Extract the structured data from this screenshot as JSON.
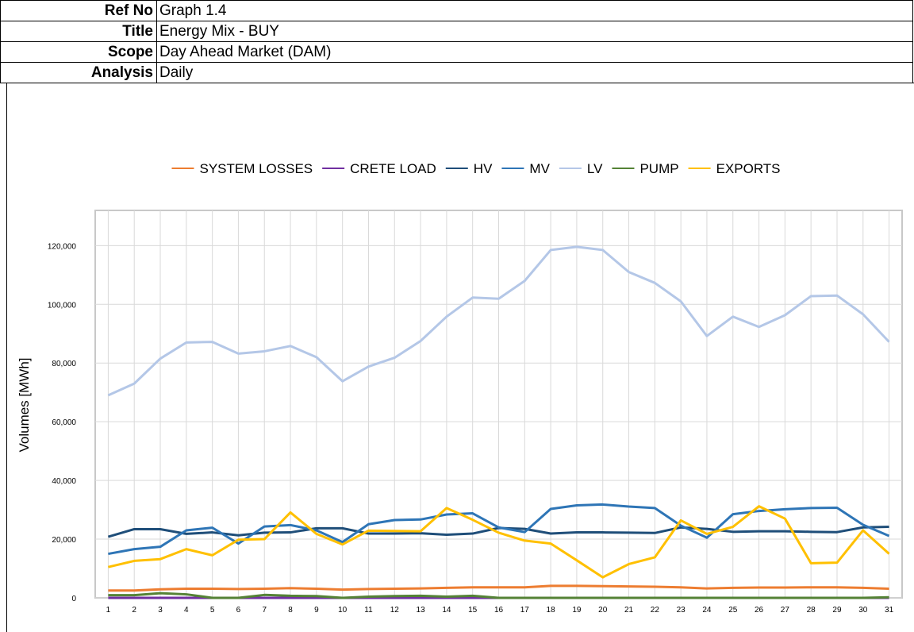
{
  "header": {
    "rows": [
      [
        "Ref No",
        "Graph 1.4"
      ],
      [
        "Title",
        "Energy Mix - BUY"
      ],
      [
        "Scope",
        "Day Ahead Market (DAM)"
      ],
      [
        "Analysis",
        "Daily"
      ]
    ]
  },
  "chart_data": {
    "type": "line",
    "y_label": "Volumes [MWh]",
    "categories": [
      "1",
      "2",
      "3",
      "4",
      "5",
      "6",
      "7",
      "8",
      "9",
      "10",
      "11",
      "12",
      "13",
      "14",
      "15",
      "16",
      "17",
      "18",
      "19",
      "20",
      "21",
      "22",
      "23",
      "24",
      "25",
      "26",
      "27",
      "28",
      "29",
      "30",
      "31"
    ],
    "ylim": [
      0,
      132000
    ],
    "yticks": [
      0,
      {
        "value": 20000,
        "label": "20,000"
      },
      {
        "value": 40000,
        "label": "40,000"
      },
      {
        "value": 60000,
        "label": "60,000"
      },
      {
        "value": 80000,
        "label": "80,000"
      },
      {
        "value": 100000,
        "label": "100,000"
      },
      {
        "value": 120000,
        "label": "120,000"
      }
    ],
    "grid": true,
    "legend": "top",
    "series": [
      {
        "name": "SYSTEM LOSSES",
        "color": "#ed7d31",
        "values": [
          2500,
          2500,
          2900,
          3100,
          3100,
          3000,
          3100,
          3300,
          3100,
          2800,
          3000,
          3100,
          3200,
          3400,
          3600,
          3600,
          3600,
          4100,
          4100,
          4000,
          3900,
          3800,
          3600,
          3200,
          3400,
          3500,
          3500,
          3600,
          3600,
          3400,
          3100
        ]
      },
      {
        "name": "CRETE LOAD",
        "color": "#7030a0",
        "values": [
          0,
          0,
          0,
          0,
          0,
          0,
          0,
          0,
          0,
          0,
          0,
          0,
          0,
          0,
          0,
          0,
          0,
          0,
          0,
          0,
          0,
          0,
          0,
          0,
          0,
          0,
          0,
          0,
          0,
          0,
          0
        ]
      },
      {
        "name": "HV",
        "color": "#1f4e79",
        "values": [
          20800,
          23400,
          23400,
          21800,
          22300,
          21300,
          22200,
          22300,
          23700,
          23700,
          21900,
          21900,
          22000,
          21500,
          21900,
          23800,
          23500,
          21900,
          22300,
          22300,
          22200,
          22100,
          24000,
          23500,
          22500,
          22700,
          22700,
          22500,
          22400,
          24000,
          24200
        ]
      },
      {
        "name": "MV",
        "color": "#2e75b6",
        "values": [
          15000,
          16600,
          17400,
          23000,
          23900,
          18500,
          24300,
          24800,
          23000,
          19000,
          25100,
          26500,
          26700,
          28400,
          28800,
          24000,
          22400,
          30300,
          31500,
          31800,
          31100,
          30600,
          24600,
          20500,
          28500,
          29600,
          30200,
          30600,
          30700,
          24900,
          21100
        ]
      },
      {
        "name": "LV",
        "color": "#b4c7e7",
        "values": [
          69000,
          73000,
          81500,
          87000,
          87200,
          83200,
          84000,
          85800,
          82000,
          73800,
          78800,
          81800,
          87500,
          95800,
          102300,
          101900,
          108000,
          118500,
          119600,
          118500,
          111000,
          107300,
          101000,
          89200,
          95800,
          92300,
          96300,
          102800,
          103000,
          96600,
          87200
        ]
      },
      {
        "name": "PUMP",
        "color": "#548235",
        "values": [
          900,
          900,
          1600,
          1200,
          0,
          0,
          1000,
          700,
          600,
          0,
          400,
          600,
          700,
          400,
          700,
          0,
          0,
          0,
          0,
          0,
          0,
          0,
          0,
          0,
          0,
          0,
          0,
          0,
          0,
          0,
          200
        ]
      },
      {
        "name": "EXPORTS",
        "color": "#ffc000",
        "values": [
          10500,
          12600,
          13200,
          16600,
          14500,
          19800,
          20000,
          29100,
          21800,
          18200,
          22900,
          22800,
          22700,
          30600,
          26600,
          22200,
          19500,
          18500,
          12800,
          7000,
          11500,
          13800,
          26400,
          21800,
          24200,
          31200,
          27000,
          11800,
          12000,
          23000,
          15000
        ]
      }
    ]
  }
}
